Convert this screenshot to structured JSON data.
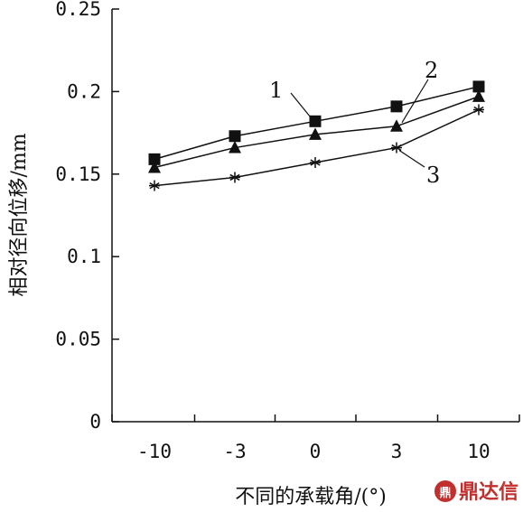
{
  "chart_data": {
    "type": "line",
    "title": "",
    "xlabel": "不同的承载角/(°)",
    "ylabel": "相对径向位移/mm",
    "categories": [
      "-10",
      "-3",
      "0",
      "3",
      "10"
    ],
    "ylim": [
      0,
      0.25
    ],
    "yticks": [
      "0",
      "0.05",
      "0.1",
      "0.15",
      "0.2",
      "0.25"
    ],
    "grid": false,
    "series": [
      {
        "name": "1",
        "marker": "square",
        "values": [
          0.159,
          0.173,
          0.182,
          0.191,
          0.203
        ]
      },
      {
        "name": "2",
        "marker": "triangle",
        "values": [
          0.154,
          0.166,
          0.174,
          0.179,
          0.197
        ]
      },
      {
        "name": "3",
        "marker": "asterisk",
        "values": [
          0.143,
          0.148,
          0.157,
          0.166,
          0.189
        ]
      }
    ]
  },
  "watermark": {
    "text": "鼎达信",
    "color": "#c0302e"
  }
}
